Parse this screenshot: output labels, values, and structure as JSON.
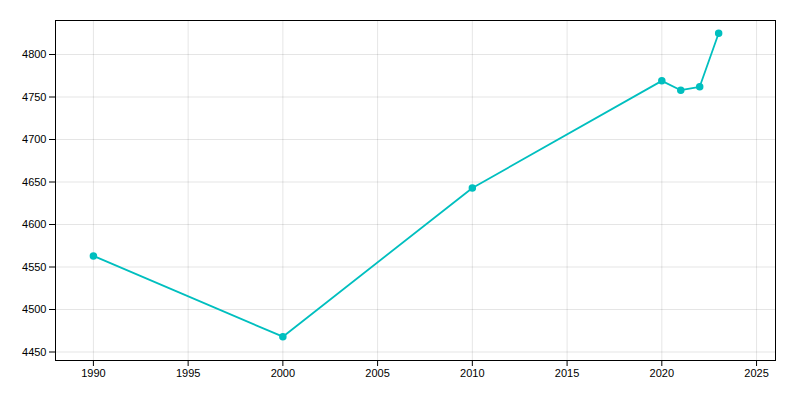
{
  "chart_data": {
    "type": "line",
    "x": [
      1990,
      2000,
      2010,
      2020,
      2021,
      2022,
      2023
    ],
    "values": [
      4563,
      4468,
      4643,
      4769,
      4758,
      4762,
      4825
    ],
    "color": "#00BFBF",
    "marker": "circle",
    "xlim": [
      1988,
      2026
    ],
    "xticks": [
      1990,
      1995,
      2000,
      2005,
      2010,
      2015,
      2020,
      2025
    ],
    "ylim": [
      4440,
      4840
    ],
    "yticks": [
      4450,
      4500,
      4550,
      4600,
      4650,
      4700,
      4750,
      4800
    ],
    "grid": true
  }
}
